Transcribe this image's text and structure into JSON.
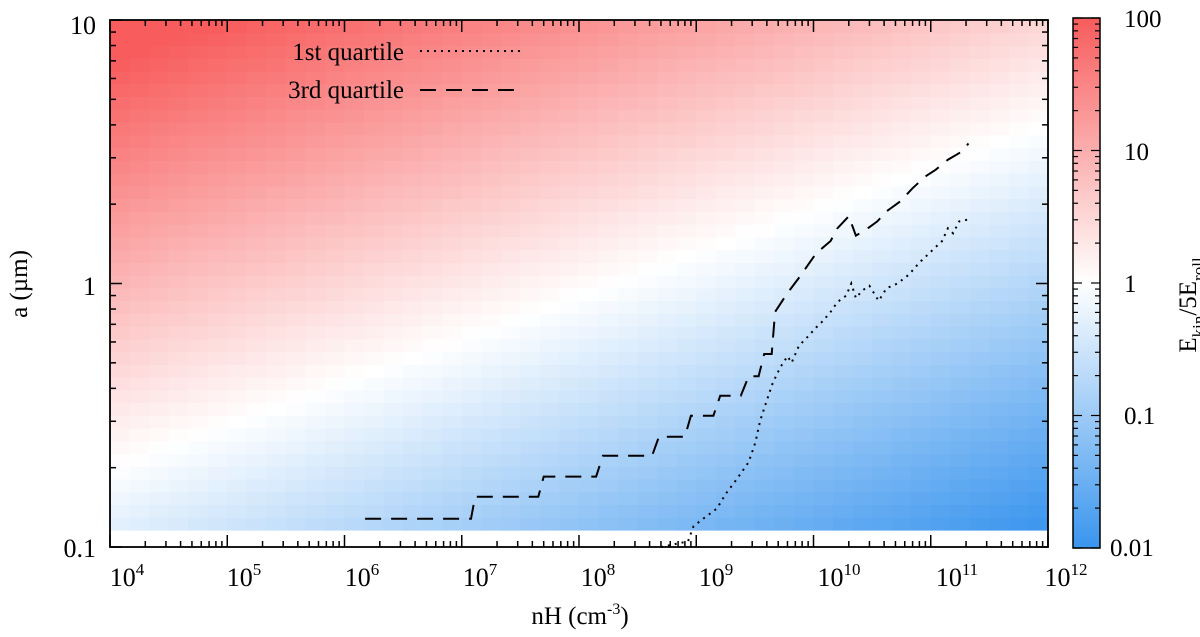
{
  "chart_data": {
    "type": "heatmap",
    "x_scale": "log",
    "y_scale": "log",
    "xlabel": "nH (cm",
    "xlabel_sup": "-3",
    "xlabel_close": ")",
    "ylabel": "a (µm)",
    "xlim": [
      10000,
      1000000000000
    ],
    "ylim": [
      0.1,
      10
    ],
    "x_ticks": [
      {
        "base": "10",
        "exp": "4"
      },
      {
        "base": "10",
        "exp": "5"
      },
      {
        "base": "10",
        "exp": "6"
      },
      {
        "base": "10",
        "exp": "7"
      },
      {
        "base": "10",
        "exp": "8"
      },
      {
        "base": "10",
        "exp": "9"
      },
      {
        "base": "10",
        "exp": "10"
      },
      {
        "base": "10",
        "exp": "11"
      },
      {
        "base": "10",
        "exp": "12"
      }
    ],
    "y_ticks": [
      {
        "value": 0.1,
        "label": "0.1"
      },
      {
        "value": 1,
        "label": "1"
      },
      {
        "value": 10,
        "label": "10"
      }
    ],
    "heatmap": {
      "quantity": "Ekin/5Eroll",
      "model": "log10(value) = 1.3 * log10(a / a_eq(nH)); log10 a_eq = -0.7 + 0.163 * (log10 nH - 4)",
      "cmin": 0.01,
      "cmax": 100,
      "low_color": "#3a95ee",
      "mid_color": "#ffffff",
      "high_color": "#f85c5c",
      "nx": 48,
      "ny": 40,
      "a_min_filled": 0.116
    },
    "colorbar": {
      "label_main": "E",
      "label_sub1": "kin",
      "label_mid": "/5E",
      "label_sub2": "roll",
      "ticks": [
        {
          "value": 0.01,
          "label": "0.01"
        },
        {
          "value": 0.1,
          "label": "0.1"
        },
        {
          "value": 1,
          "label": "1"
        },
        {
          "value": 10,
          "label": "10"
        },
        {
          "value": 100,
          "label": "100"
        }
      ]
    },
    "series": [
      {
        "name": "1st quartile",
        "style": "dotted",
        "points": [
          [
            500000000.0,
            0.1
          ],
          [
            850000000.0,
            0.105
          ],
          [
            950000000.0,
            0.12
          ],
          [
            1200000000.0,
            0.13
          ],
          [
            1500000000.0,
            0.14
          ],
          [
            1800000000.0,
            0.16
          ],
          [
            2200000000.0,
            0.18
          ],
          [
            2800000000.0,
            0.21
          ],
          [
            3200000000.0,
            0.25
          ],
          [
            3500000000.0,
            0.3
          ],
          [
            4000000000.0,
            0.36
          ],
          [
            4500000000.0,
            0.42
          ],
          [
            5200000000.0,
            0.48
          ],
          [
            6000000000.0,
            0.53
          ],
          [
            6500000000.0,
            0.5
          ],
          [
            7500000000.0,
            0.58
          ],
          [
            9000000000.0,
            0.63
          ],
          [
            10500000000.0,
            0.68
          ],
          [
            12000000000.0,
            0.72
          ],
          [
            14000000000.0,
            0.78
          ],
          [
            16000000000.0,
            0.85
          ],
          [
            19000000000.0,
            0.9
          ],
          [
            21000000000.0,
            1.0
          ],
          [
            23000000000.0,
            0.88
          ],
          [
            26000000000.0,
            0.94
          ],
          [
            30000000000.0,
            0.98
          ],
          [
            36000000000.0,
            0.86
          ],
          [
            42000000000.0,
            0.96
          ],
          [
            52000000000.0,
            1.0
          ],
          [
            65000000000.0,
            1.08
          ],
          [
            80000000000.0,
            1.2
          ],
          [
            100000000000.0,
            1.32
          ],
          [
            125000000000.0,
            1.45
          ],
          [
            140000000000.0,
            1.62
          ],
          [
            155000000000.0,
            1.55
          ],
          [
            175000000000.0,
            1.72
          ],
          [
            210000000000.0,
            1.75
          ]
        ]
      },
      {
        "name": "3rd quartile",
        "style": "dashed",
        "points": [
          [
            1500000.0,
            0.128
          ],
          [
            12000000.0,
            0.128
          ],
          [
            13000000.0,
            0.155
          ],
          [
            45000000.0,
            0.155
          ],
          [
            50000000.0,
            0.185
          ],
          [
            140000000.0,
            0.185
          ],
          [
            160000000.0,
            0.222
          ],
          [
            420000000.0,
            0.222
          ],
          [
            480000000.0,
            0.262
          ],
          [
            800000000.0,
            0.262
          ],
          [
            900000000.0,
            0.315
          ],
          [
            1400000000.0,
            0.315
          ],
          [
            1600000000.0,
            0.375
          ],
          [
            2400000000.0,
            0.375
          ],
          [
            2800000000.0,
            0.445
          ],
          [
            3400000000.0,
            0.445
          ],
          [
            3800000000.0,
            0.54
          ],
          [
            4400000000.0,
            0.54
          ],
          [
            4700000000.0,
            0.78
          ],
          [
            6000000000.0,
            0.92
          ],
          [
            7500000000.0,
            1.05
          ],
          [
            10500000000.0,
            1.3
          ],
          [
            14000000000.0,
            1.45
          ],
          [
            16000000000.0,
            1.62
          ],
          [
            20000000000.0,
            1.8
          ],
          [
            23000000000.0,
            1.52
          ],
          [
            28000000000.0,
            1.6
          ],
          [
            35000000000.0,
            1.72
          ],
          [
            42000000000.0,
            1.88
          ],
          [
            55000000000.0,
            2.05
          ],
          [
            70000000000.0,
            2.3
          ],
          [
            90000000000.0,
            2.55
          ],
          [
            110000000000.0,
            2.7
          ],
          [
            140000000000.0,
            2.95
          ],
          [
            180000000000.0,
            3.15
          ],
          [
            210000000000.0,
            3.4
          ]
        ]
      }
    ]
  }
}
